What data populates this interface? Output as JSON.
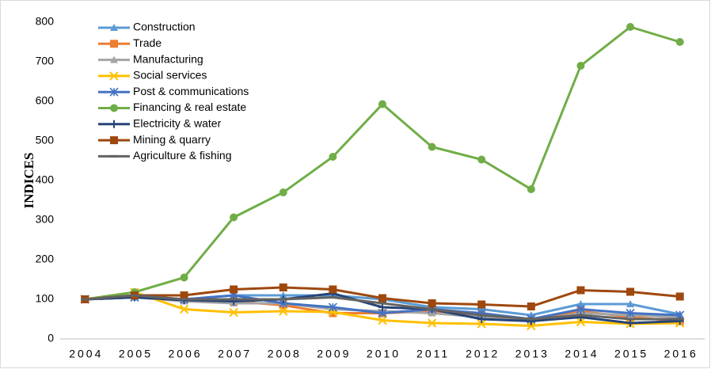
{
  "chart_data": {
    "type": "line",
    "y_label": "INDICES",
    "categories": [
      "2004",
      "2005",
      "2006",
      "2007",
      "2008",
      "2009",
      "2010",
      "2011",
      "2012",
      "2013",
      "2014",
      "2015",
      "2016"
    ],
    "ylim": [
      0,
      800
    ],
    "yticks": [
      0,
      100,
      200,
      300,
      400,
      500,
      600,
      700,
      800
    ],
    "legend": "top-left",
    "series": [
      {
        "name": "Construction",
        "color": "#5b9bd5",
        "marker": "triangle",
        "values": [
          100,
          105,
          100,
          110,
          110,
          110,
          100,
          80,
          75,
          60,
          88,
          88,
          62
        ]
      },
      {
        "name": "Trade",
        "color": "#ed7d31",
        "marker": "square",
        "values": [
          100,
          110,
          100,
          95,
          85,
          65,
          65,
          70,
          60,
          45,
          70,
          55,
          45
        ]
      },
      {
        "name": "Manufacturing",
        "color": "#a5a5a5",
        "marker": "triangle",
        "values": [
          100,
          105,
          95,
          90,
          90,
          75,
          70,
          65,
          55,
          45,
          65,
          60,
          55
        ]
      },
      {
        "name": "Social services",
        "color": "#ffc000",
        "marker": "x",
        "values": [
          100,
          118,
          75,
          67,
          70,
          68,
          47,
          40,
          38,
          33,
          43,
          38,
          40
        ]
      },
      {
        "name": "Post & communications",
        "color": "#4472c4",
        "marker": "asterisk",
        "values": [
          100,
          105,
          100,
          110,
          90,
          80,
          65,
          75,
          65,
          50,
          75,
          65,
          60
        ]
      },
      {
        "name": "Financing & real estate",
        "color": "#70ad47",
        "marker": "circle",
        "values": [
          100,
          118,
          155,
          307,
          370,
          460,
          593,
          485,
          453,
          378,
          690,
          788,
          750
        ]
      },
      {
        "name": "Electricity & water",
        "color": "#264478",
        "marker": "plus",
        "values": [
          100,
          105,
          98,
          95,
          100,
          115,
          80,
          75,
          50,
          45,
          55,
          40,
          45
        ]
      },
      {
        "name": "Mining & quarry",
        "color": "#9e480e",
        "marker": "square",
        "values": [
          100,
          110,
          110,
          125,
          130,
          125,
          103,
          90,
          87,
          82,
          123,
          119,
          107
        ]
      },
      {
        "name": "Agriculture & fishing",
        "color": "#636363",
        "marker": "dash",
        "values": [
          100,
          110,
          100,
          100,
          100,
          105,
          90,
          75,
          60,
          50,
          60,
          50,
          50
        ]
      }
    ]
  }
}
